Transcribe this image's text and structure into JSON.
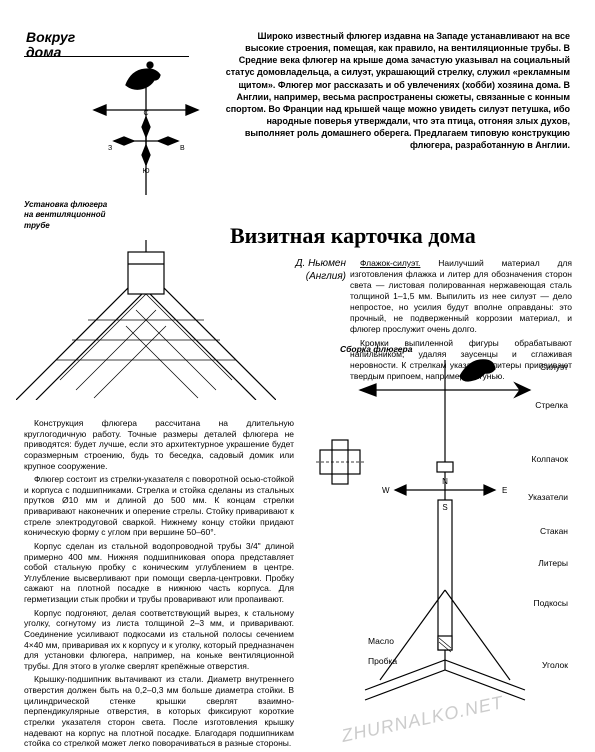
{
  "section_title": "Вокруг\nдома",
  "intro": "Широко известный флюгер издавна на Западе устанавливают на все высокие строения, помещая, как правило, на вентиляционные трубы. В Средние века флюгер на крыше дома зачастую указывал на социальный статус домовладельца, а силуэт, украшающий стрелку, служил «рекламным щитом». Флюгер мог рассказать и об увлечениях (хобби) хозяина дома. В Англии, например, весьма распространены сюжеты, связанные с конным спортом. Во Франции над крышей чаще можно увидеть силуэт петушка, ибо народные поверья утверждали, что эта птица, отгоняя злых духов, выполняет роль домашнего оберега. Предлагаем типовую конструкцию флюгера, разработанную в Англии.",
  "title": "Визитная карточка дома",
  "author": "Д. Ньюмен (Англия)",
  "install_caption": "Установка флюгера на вентиляционной трубе",
  "right_p1_lead": "Флажок-силуэт.",
  "right_p1": "Наилучший материал для изготовления флажка и литер для обозначения сторон света — листовая полированная нержавеющая сталь толщиной 1–1,5 мм. Выпилить из нее силуэт — дело непростое, но усилия будут вполне оправданы: это прочный, не подверженный коррозии материал, и флюгер прослужит очень долго.",
  "right_p2": "Кромки выпиленной фигуры обрабатывают напильником, удаляя заусенцы и сглаживая неровности. К стрелкам указателя литеры припаивают твердым припоем, например, латунью.",
  "body_p1": "Конструкция флюгера рассчитана на длительную круглогодичную работу. Точные размеры деталей флюгера не приводятся: будет лучше, если это архитектурное украшение будет соразмерным строению, будь то беседка, садовый домик или крупное сооружение.",
  "body_p2": "Флюгер состоит из стрелки-указателя с поворотной осью-стойкой и корпуса с подшипниками. Стрелка и стойка сделаны из стальных прутков Ø10 мм и длиной до 500 мм. К концам стрелки приваривают наконечник и оперение стрелы. Стойку приваривают к стреле электродуговой сваркой. Нижнему концу стойки придают коническую форму с углом при вершине 50–60°.",
  "body_p3": "Корпус сделан из стальной водопроводной трубы 3/4\" длиной примерно 400 мм. Нижняя подшипниковая опора представляет собой стальную пробку с коническим углублением в центре. Углубление высверливают при помощи сверла-центровки. Пробку сажают на плотной посадке в нижнюю часть корпуса. Для герметизации стык пробки и трубы проваривают или пропаивают.",
  "body_p4": "Корпус подгоняют, делая соответствующий вырез, к стальному уголку, согнутому из листа толщиной 2–3 мм, и приваривают. Соединение усиливают подкосами из стальной полосы сечением 4×40 мм, приваривая их к корпусу и к уголку, который предназначен для установки флюгера, например, на коньке вентиляционной трубы. Для этого в уголке сверлят крепёжные отверстия.",
  "body_p5": "Крышку-подшипник вытачивают из стали. Диаметр внутреннего отверстия должен быть на 0,2–0,3 мм больше диаметра стойки. В цилиндрической стенке крышки сверлят взаимно-перпендикулярные отверстия, в которых фиксируют короткие стрелки указателя сторон света. После изготовления крышку надевают на корпус на плотной посадке. Благодаря подшипникам стойка со стрелкой может легко поворачиваться в разные стороны.",
  "diagram": {
    "title": "Сборка флюгера",
    "labels": {
      "silhouette": "Силуэт",
      "arrow": "Стрелка",
      "cap": "Колпачок",
      "pointers": "Указатели",
      "glass": "Стакан",
      "letters": "Литеры",
      "braces": "Подкосы",
      "oil": "Масло",
      "angle": "Уголок",
      "plug": "Пробка"
    },
    "compass": {
      "n": "N",
      "s": "S",
      "e": "E",
      "w": "W"
    },
    "miniCompass": {
      "n": "С",
      "s": "Ю",
      "e": "В",
      "w": "З"
    }
  },
  "watermark": "ZHURNALKO.NET",
  "style": {
    "bg": "#ffffff",
    "fg": "#000000",
    "watermark_color": "#cccccc",
    "title_fs": 22,
    "section_fs": 14,
    "body_fs": 8.5,
    "intro_fs": 9
  }
}
